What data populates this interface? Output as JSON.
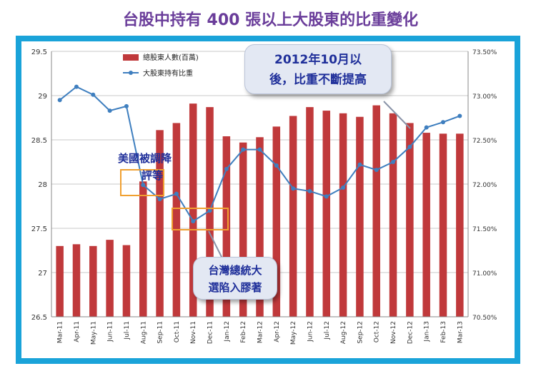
{
  "page": {
    "title": "台股中持有 400 張以上大股東的比重變化"
  },
  "colors": {
    "frame": "#1aa3d9",
    "bar": "#c0393b",
    "line": "#3f7fbf",
    "title": "#6a3d9a",
    "annotation_text": "#1f2f9a",
    "highlight_box": "#f0a030"
  },
  "annotations": {
    "us_downgrade": "美國被調降評等",
    "us_downgrade_line1": "美國被調降",
    "us_downgrade_line2": "評等",
    "election_line1": "台灣總統大",
    "election_line2": "選陷入膠著",
    "after_oct_line1": "2012年10月以",
    "after_oct_line2": "後，比重不斷提高"
  },
  "chart_data": {
    "type": "bar",
    "categories": [
      "Mar-11",
      "Apr-11",
      "May-11",
      "Jun-11",
      "Jul-11",
      "Aug-11",
      "Sep-11",
      "Oct-11",
      "Nov-11",
      "Dec-11",
      "Jan-12",
      "Feb-12",
      "Mar-12",
      "Apr-12",
      "May-12",
      "Jun-12",
      "Jul-12",
      "Aug-12",
      "Sep-12",
      "Oct-12",
      "Nov-12",
      "Dec-12",
      "Jan-13",
      "Feb-13",
      "Mar-13"
    ],
    "series": [
      {
        "name": "總股東人數(百萬)",
        "kind": "bar",
        "axis": "left",
        "values": [
          27.3,
          27.32,
          27.3,
          27.37,
          27.31,
          28.03,
          28.61,
          28.69,
          28.91,
          28.87,
          28.54,
          28.47,
          28.53,
          28.65,
          28.77,
          28.87,
          28.83,
          28.8,
          28.76,
          28.89,
          28.8,
          28.69,
          28.58,
          28.57,
          28.57
        ]
      },
      {
        "name": "大股東持有比重",
        "kind": "line",
        "axis": "right",
        "values": [
          72.95,
          73.1,
          73.01,
          72.83,
          72.88,
          71.99,
          71.83,
          71.89,
          71.58,
          71.7,
          72.17,
          72.39,
          72.39,
          72.21,
          71.95,
          71.92,
          71.86,
          71.96,
          72.22,
          72.16,
          72.25,
          72.42,
          72.64,
          72.7,
          72.77
        ]
      }
    ],
    "y_left": {
      "ylim": [
        26.5,
        29.5
      ],
      "ticks": [
        "26.5",
        "27",
        "27.5",
        "28",
        "28.5",
        "29",
        "29.5"
      ]
    },
    "y_right": {
      "ylim": [
        70.5,
        73.5
      ],
      "ticks": [
        "70.50%",
        "71.00%",
        "71.50%",
        "72.00%",
        "72.50%",
        "73.00%",
        "73.50%"
      ]
    },
    "grid": true,
    "legend_position": "top-left",
    "title": "台股中持有 400 張以上大股東的比重變化"
  }
}
